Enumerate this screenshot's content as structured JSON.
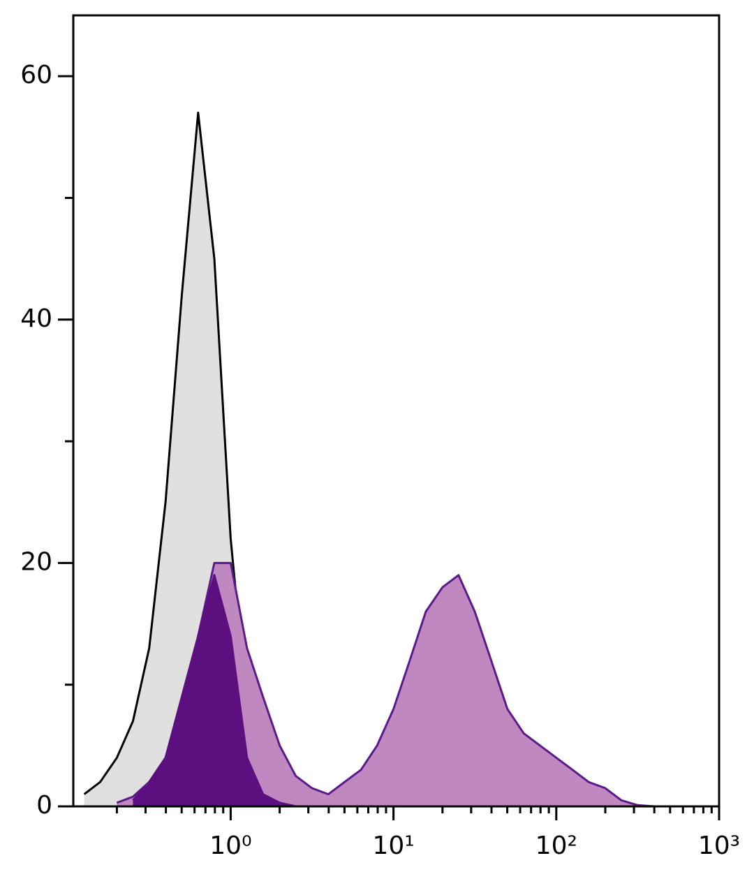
{
  "chart_data": {
    "type": "area",
    "x": [
      0.126,
      0.158,
      0.2,
      0.251,
      0.316,
      0.398,
      0.501,
      0.631,
      0.794,
      1,
      1.26,
      1.58,
      2,
      2.51,
      3.16,
      3.98,
      5.01,
      6.31,
      7.94,
      10,
      12.6,
      15.8,
      20,
      25.1,
      31.6,
      39.8,
      50.1,
      63.1,
      79.4,
      100,
      126,
      158,
      200,
      251,
      316,
      398
    ],
    "series": [
      {
        "color": "#e0e0e0",
        "line_color": "#000000",
        "values": [
          1,
          2,
          4,
          7,
          13,
          25,
          42,
          57,
          45,
          22,
          8,
          3,
          1,
          0.5,
          0,
          null,
          null,
          null,
          null,
          null,
          null,
          null,
          null,
          null,
          null,
          null,
          null,
          null,
          null,
          null,
          null,
          null,
          null,
          null,
          null,
          null
        ]
      },
      {
        "color": "#c088c0",
        "line_color": "#5a1a8a",
        "values": [
          null,
          null,
          0.3,
          0.8,
          2,
          4,
          8,
          14,
          20,
          20,
          13,
          9,
          5,
          2.5,
          1.5,
          1,
          2,
          3,
          5,
          8,
          12,
          16,
          18,
          19,
          16,
          12,
          8,
          6,
          5,
          4,
          3,
          2,
          1.5,
          0.5,
          0.1,
          0
        ]
      },
      {
        "color": "#5c1080",
        "line_color": "#5c1080",
        "values": [
          null,
          null,
          null,
          0.5,
          2,
          4,
          9,
          14,
          19,
          14,
          4,
          1,
          0.3,
          0,
          null,
          null,
          null,
          null,
          null,
          null,
          null,
          null,
          null,
          null,
          null,
          null,
          null,
          null,
          null,
          null,
          null,
          null,
          null,
          null,
          null,
          null
        ]
      }
    ],
    "xscale": "log",
    "xlim": [
      0.108,
      1000
    ],
    "xticks": [
      {
        "value": 1,
        "label": "10⁰"
      },
      {
        "value": 10,
        "label": "10¹"
      },
      {
        "value": 100,
        "label": "10²"
      },
      {
        "value": 1000,
        "label": "10³"
      }
    ],
    "xminor_ticks": [
      0.2,
      0.3,
      0.4,
      0.5,
      0.6,
      0.7,
      0.8,
      0.9,
      2,
      3,
      4,
      5,
      6,
      7,
      8,
      9,
      20,
      30,
      40,
      50,
      60,
      70,
      80,
      90,
      200,
      300,
      400,
      500,
      600,
      700,
      800,
      900
    ],
    "ylim": [
      0,
      65
    ],
    "yticks": [
      0,
      20,
      40,
      60
    ],
    "yminor_ticks": [
      10,
      30,
      50
    ],
    "grid": false
  }
}
